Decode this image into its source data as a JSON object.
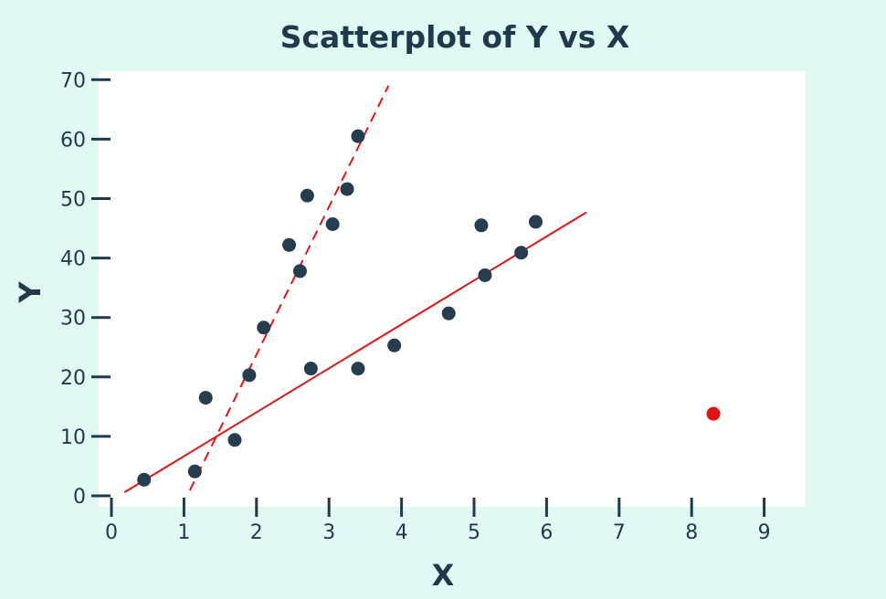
{
  "chart_data": {
    "type": "scatter",
    "title": "Scatterplot of Y vs X",
    "xlabel": "X",
    "ylabel": "Y",
    "xlim": [
      0,
      9
    ],
    "ylim": [
      0,
      70
    ],
    "xticks": [
      0,
      1,
      2,
      3,
      4,
      5,
      6,
      7,
      8,
      9
    ],
    "yticks": [
      0,
      10,
      20,
      30,
      40,
      50,
      60,
      70
    ],
    "grid": false,
    "series": [
      {
        "color": "#263d4f",
        "points": [
          [
            0.45,
            2.7
          ],
          [
            1.15,
            4.1
          ],
          [
            1.3,
            16.5
          ],
          [
            1.7,
            9.4
          ],
          [
            1.9,
            20.3
          ],
          [
            2.1,
            28.3
          ],
          [
            2.45,
            42.2
          ],
          [
            2.6,
            37.8
          ],
          [
            2.7,
            50.5
          ],
          [
            2.75,
            21.4
          ],
          [
            3.05,
            45.7
          ],
          [
            3.25,
            51.6
          ],
          [
            3.4,
            60.5
          ],
          [
            3.4,
            21.4
          ],
          [
            3.9,
            25.3
          ],
          [
            4.65,
            30.7
          ],
          [
            5.1,
            45.5
          ],
          [
            5.15,
            37.1
          ],
          [
            5.65,
            40.9
          ],
          [
            5.85,
            46.1
          ]
        ]
      },
      {
        "color": "#e01414",
        "points": [
          [
            8.3,
            13.8
          ]
        ]
      }
    ],
    "fit_lines": [
      {
        "style": "solid",
        "color": "#e01414",
        "from": [
          0.18,
          0.6
        ],
        "to": [
          6.55,
          47.7
        ]
      },
      {
        "style": "dashed",
        "color": "#e01414",
        "from": [
          1.08,
          0.9
        ],
        "to": [
          3.82,
          69.0
        ]
      }
    ]
  }
}
